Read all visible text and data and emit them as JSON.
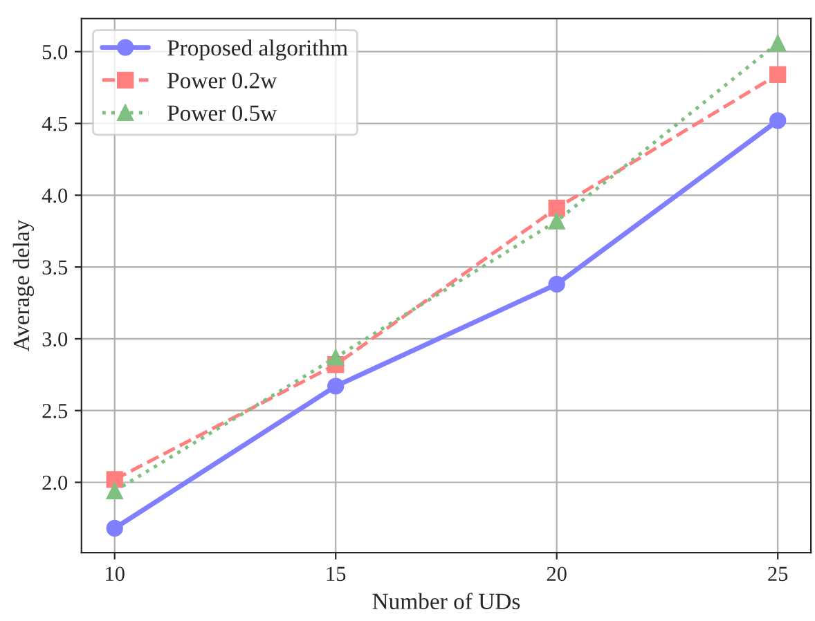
{
  "chart_data": {
    "type": "line",
    "xlabel": "Number of UDs",
    "ylabel": "Average delay",
    "x": [
      10,
      15,
      20,
      25
    ],
    "series": [
      {
        "name": "Proposed algorithm",
        "color": "#7f7fff",
        "values": [
          1.68,
          2.67,
          3.38,
          4.52
        ],
        "marker": "circle",
        "line_style": "solid"
      },
      {
        "name": "Power 0.2w",
        "color": "#ff7f7f",
        "values": [
          2.02,
          2.82,
          3.91,
          4.84
        ],
        "marker": "square",
        "line_style": "dashed"
      },
      {
        "name": "Power 0.5w",
        "color": "#7fbf7f",
        "values": [
          1.94,
          2.87,
          3.82,
          5.06
        ],
        "marker": "triangle",
        "line_style": "dotted"
      }
    ],
    "xlim": [
      9.25,
      25.75
    ],
    "xticks": [
      10,
      15,
      20,
      25
    ],
    "ylim": [
      1.51,
      5.23
    ],
    "yticks": [
      {
        "value": 2,
        "label": "2.0"
      },
      {
        "value": 2.5,
        "label": "2.5"
      },
      {
        "value": 3,
        "label": "3.0"
      },
      {
        "value": 3.5,
        "label": "3.5"
      },
      {
        "value": 4,
        "label": "4.0"
      },
      {
        "value": 4.5,
        "label": "4.5"
      },
      {
        "value": 5,
        "label": "5.0"
      }
    ],
    "grid": true,
    "legend": "top left"
  }
}
